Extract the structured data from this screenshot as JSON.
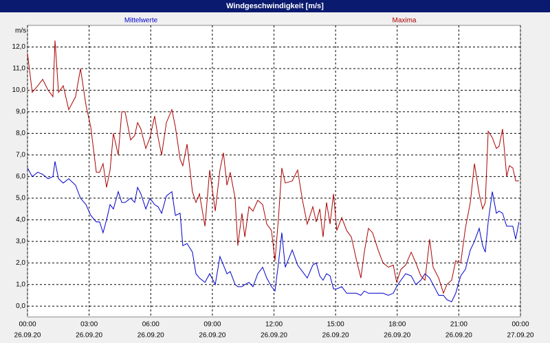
{
  "chart_data": {
    "type": "line",
    "title": "Windgeschwindigkeit [m/s]",
    "y_label": "m/s",
    "x": [
      0,
      0.23,
      0.5,
      0.74,
      1.0,
      1.24,
      1.34,
      1.51,
      1.74,
      2.01,
      2.34,
      2.58,
      2.85,
      3.08,
      3.35,
      3.51,
      3.68,
      3.85,
      4.02,
      4.18,
      4.42,
      4.59,
      4.75,
      5.02,
      5.22,
      5.36,
      5.52,
      5.76,
      5.96,
      6.19,
      6.36,
      6.53,
      6.76,
      7.03,
      7.2,
      7.43,
      7.56,
      7.77,
      8.03,
      8.2,
      8.37,
      8.64,
      8.87,
      9.14,
      9.37,
      9.54,
      9.71,
      9.87,
      10.11,
      10.24,
      10.44,
      10.58,
      10.78,
      10.98,
      11.21,
      11.45,
      11.65,
      11.88,
      12.05,
      12.22,
      12.38,
      12.55,
      12.89,
      13.15,
      13.39,
      13.62,
      13.89,
      14.06,
      14.23,
      14.39,
      14.56,
      14.73,
      14.9,
      15.06,
      15.3,
      15.54,
      15.77,
      16.0,
      16.23,
      16.4,
      16.6,
      16.8,
      17.07,
      17.31,
      17.57,
      17.81,
      17.97,
      18.18,
      18.41,
      18.68,
      18.91,
      19.15,
      19.35,
      19.58,
      19.75,
      20.02,
      20.25,
      20.42,
      20.65,
      20.85,
      21.09,
      21.32,
      21.56,
      21.76,
      21.99,
      22.16,
      22.29,
      22.43,
      22.63,
      22.83,
      22.96,
      23.13,
      23.33,
      23.46,
      23.63,
      23.77,
      23.93
    ],
    "series": [
      {
        "name": "Mittelwerte",
        "color": "#0000cc",
        "values": [
          6.4,
          6.0,
          6.2,
          6.1,
          5.9,
          6.0,
          6.7,
          5.9,
          5.7,
          5.9,
          5.6,
          5.0,
          4.7,
          4.2,
          3.9,
          3.9,
          3.4,
          4.0,
          4.7,
          4.5,
          5.3,
          4.8,
          4.8,
          5.0,
          4.8,
          5.5,
          5.2,
          4.5,
          5.0,
          4.7,
          4.6,
          4.3,
          5.1,
          5.3,
          4.2,
          4.3,
          2.8,
          2.9,
          2.5,
          1.5,
          1.3,
          1.1,
          1.5,
          1.0,
          2.3,
          1.9,
          1.5,
          1.6,
          1.0,
          0.9,
          0.9,
          1.0,
          1.1,
          0.9,
          1.5,
          1.8,
          1.3,
          0.9,
          0.7,
          2.0,
          3.4,
          1.8,
          2.6,
          1.9,
          1.6,
          1.3,
          1.9,
          2.0,
          1.4,
          1.2,
          1.5,
          1.4,
          0.8,
          0.8,
          0.9,
          0.6,
          0.6,
          0.6,
          0.5,
          0.7,
          0.6,
          0.6,
          0.6,
          0.6,
          0.5,
          0.6,
          0.9,
          1.2,
          1.5,
          1.4,
          1.0,
          1.2,
          1.5,
          1.3,
          1.0,
          0.5,
          0.5,
          0.3,
          0.2,
          0.6,
          1.4,
          1.7,
          2.6,
          3.0,
          3.6,
          2.8,
          2.5,
          3.9,
          5.3,
          4.3,
          4.4,
          4.3,
          3.7,
          3.7,
          3.7,
          3.1,
          3.9
        ]
      },
      {
        "name": "Maxima",
        "color": "#aa0000",
        "values": [
          11.7,
          9.9,
          10.2,
          10.5,
          10.0,
          9.7,
          12.3,
          9.9,
          10.2,
          9.1,
          9.7,
          11.0,
          9.3,
          8.3,
          6.2,
          6.2,
          6.6,
          5.5,
          6.3,
          8.0,
          7.0,
          9.0,
          9.0,
          7.7,
          7.9,
          8.5,
          8.2,
          7.3,
          7.8,
          8.8,
          7.8,
          7.0,
          8.5,
          9.1,
          8.3,
          6.8,
          6.5,
          7.5,
          5.3,
          4.8,
          5.2,
          3.7,
          6.3,
          4.4,
          6.3,
          7.1,
          5.6,
          6.2,
          5.0,
          2.8,
          4.3,
          3.2,
          4.6,
          4.4,
          4.9,
          4.7,
          3.8,
          3.5,
          2.1,
          4.1,
          6.4,
          5.7,
          5.8,
          6.3,
          4.9,
          3.8,
          4.6,
          3.9,
          4.5,
          3.2,
          4.8,
          3.8,
          5.2,
          3.5,
          4.1,
          3.5,
          3.2,
          2.2,
          1.3,
          2.5,
          3.6,
          3.4,
          2.6,
          2.0,
          1.8,
          1.9,
          1.1,
          1.7,
          1.9,
          2.5,
          2.0,
          1.4,
          1.2,
          3.1,
          1.8,
          1.3,
          0.6,
          1.0,
          1.2,
          2.1,
          2.0,
          3.6,
          4.8,
          6.6,
          5.2,
          4.5,
          4.8,
          8.1,
          7.8,
          7.3,
          7.4,
          8.2,
          6.0,
          6.5,
          6.4,
          5.8,
          5.8
        ]
      }
    ],
    "xlim": [
      0,
      24
    ],
    "ylim": [
      -0.5,
      13
    ],
    "xticks": [
      {
        "value": 0,
        "label": "00:00",
        "date": "26.09.20"
      },
      {
        "value": 3,
        "label": "03:00",
        "date": "26.09.20"
      },
      {
        "value": 6,
        "label": "06:00",
        "date": "26.09.20"
      },
      {
        "value": 9,
        "label": "09:00",
        "date": "26.09.20"
      },
      {
        "value": 12,
        "label": "12:00",
        "date": "26.09.20"
      },
      {
        "value": 15,
        "label": "15:00",
        "date": "26.09.20"
      },
      {
        "value": 18,
        "label": "18:00",
        "date": "26.09.20"
      },
      {
        "value": 21,
        "label": "21:00",
        "date": "26.09.20"
      },
      {
        "value": 24,
        "label": "00:00",
        "date": "27.09.20"
      }
    ],
    "yticks": [
      {
        "value": 0,
        "label": "0,0"
      },
      {
        "value": 1,
        "label": "1,0"
      },
      {
        "value": 2,
        "label": "2,0"
      },
      {
        "value": 3,
        "label": "3,0"
      },
      {
        "value": 4,
        "label": "4,0"
      },
      {
        "value": 5,
        "label": "5,0"
      },
      {
        "value": 6,
        "label": "6,0"
      },
      {
        "value": 7,
        "label": "7,0"
      },
      {
        "value": 8,
        "label": "8,0"
      },
      {
        "value": 9,
        "label": "9,0"
      },
      {
        "value": 10,
        "label": "10,0"
      },
      {
        "value": 11,
        "label": "11,0"
      },
      {
        "value": 12,
        "label": "12,0"
      }
    ],
    "grid": true
  }
}
